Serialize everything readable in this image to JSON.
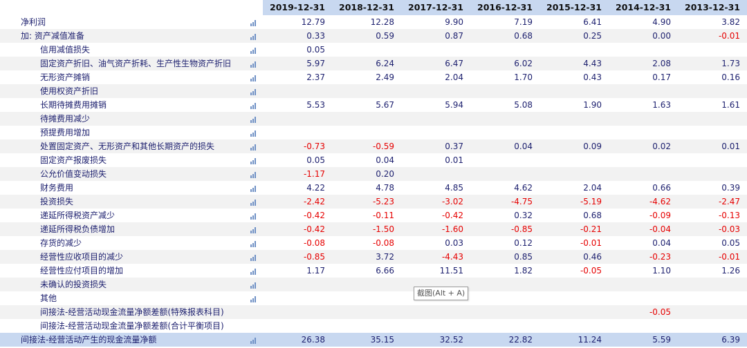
{
  "header": {
    "years": [
      "2019-12-31",
      "2018-12-31",
      "2017-12-31",
      "2016-12-31",
      "2015-12-31",
      "2014-12-31",
      "2013-12-31"
    ]
  },
  "rows": [
    {
      "label": "净利润",
      "level": 0,
      "icon": true,
      "values": [
        "12.79",
        "12.28",
        "9.90",
        "7.19",
        "6.41",
        "4.90",
        "3.82"
      ]
    },
    {
      "label": "加: 资产减值准备",
      "level": 0,
      "icon": true,
      "values": [
        "0.33",
        "0.59",
        "0.87",
        "0.68",
        "0.25",
        "0.00",
        "-0.01"
      ]
    },
    {
      "label": "信用减值损失",
      "level": 1,
      "icon": true,
      "values": [
        "0.05",
        "",
        "",
        "",
        "",
        "",
        ""
      ]
    },
    {
      "label": "固定资产折旧、油气资产折耗、生产性生物资产折旧",
      "level": 1,
      "icon": true,
      "values": [
        "5.97",
        "6.24",
        "6.47",
        "6.02",
        "4.43",
        "2.08",
        "1.73"
      ]
    },
    {
      "label": "无形资产摊销",
      "level": 1,
      "icon": true,
      "values": [
        "2.37",
        "2.49",
        "2.04",
        "1.70",
        "0.43",
        "0.17",
        "0.16"
      ]
    },
    {
      "label": "使用权资产折旧",
      "level": 1,
      "icon": true,
      "values": [
        "",
        "",
        "",
        "",
        "",
        "",
        ""
      ]
    },
    {
      "label": "长期待摊费用摊销",
      "level": 1,
      "icon": true,
      "values": [
        "5.53",
        "5.67",
        "5.94",
        "5.08",
        "1.90",
        "1.63",
        "1.61"
      ]
    },
    {
      "label": "待摊费用减少",
      "level": 1,
      "icon": true,
      "values": [
        "",
        "",
        "",
        "",
        "",
        "",
        ""
      ]
    },
    {
      "label": "预提费用增加",
      "level": 1,
      "icon": true,
      "values": [
        "",
        "",
        "",
        "",
        "",
        "",
        ""
      ]
    },
    {
      "label": "处置固定资产、无形资产和其他长期资产的损失",
      "level": 1,
      "icon": true,
      "values": [
        "-0.73",
        "-0.59",
        "0.37",
        "0.04",
        "0.09",
        "0.02",
        "0.01"
      ]
    },
    {
      "label": "固定资产报废损失",
      "level": 1,
      "icon": true,
      "values": [
        "0.05",
        "0.04",
        "0.01",
        "",
        "",
        "",
        ""
      ]
    },
    {
      "label": "公允价值变动损失",
      "level": 1,
      "icon": true,
      "values": [
        "-1.17",
        "0.20",
        "",
        "",
        "",
        "",
        ""
      ]
    },
    {
      "label": "财务费用",
      "level": 1,
      "icon": true,
      "values": [
        "4.22",
        "4.78",
        "4.85",
        "4.62",
        "2.04",
        "0.66",
        "0.39"
      ]
    },
    {
      "label": "投资损失",
      "level": 1,
      "icon": true,
      "values": [
        "-2.42",
        "-5.23",
        "-3.02",
        "-4.75",
        "-5.19",
        "-4.62",
        "-2.47"
      ]
    },
    {
      "label": "递延所得税资产减少",
      "level": 1,
      "icon": true,
      "values": [
        "-0.42",
        "-0.11",
        "-0.42",
        "0.32",
        "0.68",
        "-0.09",
        "-0.13"
      ]
    },
    {
      "label": "递延所得税负债增加",
      "level": 1,
      "icon": true,
      "values": [
        "-0.42",
        "-1.50",
        "-1.60",
        "-0.85",
        "-0.21",
        "-0.04",
        "-0.03"
      ]
    },
    {
      "label": "存货的减少",
      "level": 1,
      "icon": true,
      "values": [
        "-0.08",
        "-0.08",
        "0.03",
        "0.12",
        "-0.01",
        "0.04",
        "0.05"
      ]
    },
    {
      "label": "经营性应收项目的减少",
      "level": 1,
      "icon": true,
      "values": [
        "-0.85",
        "3.72",
        "-4.43",
        "0.85",
        "0.46",
        "-0.23",
        "-0.01"
      ]
    },
    {
      "label": "经营性应付项目的增加",
      "level": 1,
      "icon": true,
      "values": [
        "1.17",
        "6.66",
        "11.51",
        "1.82",
        "-0.05",
        "1.10",
        "1.26"
      ]
    },
    {
      "label": "未确认的投资损失",
      "level": 1,
      "icon": true,
      "values": [
        "",
        "",
        "",
        "",
        "",
        "",
        ""
      ]
    },
    {
      "label": "其他",
      "level": 1,
      "icon": true,
      "values": [
        "",
        "",
        "",
        "",
        "",
        "",
        ""
      ]
    },
    {
      "label": "间接法-经营活动现金流量净额差额(特殊报表科目)",
      "level": 1,
      "icon": false,
      "values": [
        "",
        "",
        "",
        "",
        "",
        "-0.05",
        ""
      ]
    },
    {
      "label": "间接法-经营活动现金流量净额差额(合计平衡项目)",
      "level": 1,
      "icon": false,
      "values": [
        "",
        "",
        "",
        "",
        "",
        "",
        ""
      ]
    },
    {
      "label": "间接法-经营活动产生的现金流量净额",
      "level": 0,
      "icon": true,
      "total": true,
      "values": [
        "26.38",
        "35.15",
        "32.52",
        "22.82",
        "11.24",
        "5.59",
        "6.39"
      ]
    }
  ],
  "tooltip": {
    "text": "截图(Alt + A)"
  },
  "colors": {
    "header_bg": "#c8d8f0",
    "negative": "#e60000",
    "text": "#1c1f6e"
  },
  "icon_name": "bar-chart-icon"
}
